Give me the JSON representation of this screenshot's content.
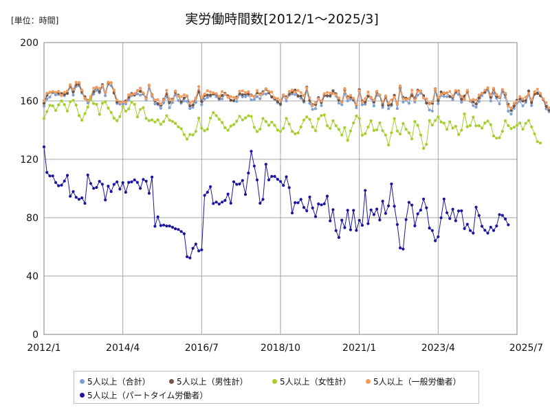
{
  "chart_data": {
    "type": "line",
    "title": "実労働時間数[2012/1～2025/3]",
    "unit_label": "[単位：時間]",
    "x_start": "2012/1",
    "x_end": "2025/7",
    "x_ticks": [
      "2012/1",
      "2014/4",
      "2016/7",
      "2018/10",
      "2021/1",
      "2023/4",
      "2025/7"
    ],
    "y_ticks": [
      0,
      40,
      80,
      120,
      160,
      200
    ],
    "ylim": [
      0,
      200
    ],
    "grid": true,
    "legend_position": "bottom",
    "series": [
      {
        "name": "5人以上（合計）",
        "color": "#7f9fd4",
        "values": [
          156.4,
          161.4,
          162.7,
          165.8,
          164.2,
          164.5,
          163.6,
          163.6,
          165.4,
          169.7,
          164.0,
          170.0,
          170.4,
          165.3,
          161.5,
          158.7,
          161.2,
          164.7,
          167.2,
          165.6,
          169.8,
          163.6,
          171.3,
          170.5,
          166.2,
          158.2,
          157.8,
          158.0,
          158.0,
          160.6,
          163.6,
          163.8,
          164.8,
          164.0,
          164.7,
          160.6,
          168.5,
          163.2,
          158.0,
          157.6,
          155.0,
          158.8,
          162.9,
          155.4,
          158.9,
          164.1,
          160.3,
          158.4,
          160.0,
          159.7,
          154.8,
          155.6,
          159.0,
          167.3,
          157.4,
          161.3,
          162.4,
          163.2,
          165.0,
          163.0,
          160.8,
          161.4,
          164.4,
          162.6,
          160.5,
          160.1,
          159.7,
          164.4,
          162.8,
          162.9,
          163.9,
          160.7,
          161.1,
          163.0,
          161.6,
          164.8,
          164.7,
          165.7,
          162.6,
          161.1,
          158.7,
          157.3,
          163.5,
          160.0,
          163.9,
          164.7,
          164.4,
          163.6,
          161.9,
          159.1,
          167.1,
          158.4,
          154.2,
          154.7,
          162.4,
          156.8,
          163.5,
          163.3,
          163.2,
          165.8,
          163.4,
          158.5,
          157.4,
          164.8,
          160.0,
          161.3,
          160.4,
          155.4,
          166.4,
          157.4,
          157.7,
          163.4,
          161.8,
          156.6,
          163.8,
          163.6,
          155.6,
          163.1,
          154.7,
          156.9,
          163.8,
          154.8,
          168.0,
          159.2,
          160.4,
          158.4,
          164.6,
          159.2,
          164.0,
          165.3,
          162.7,
          158.5,
          153.8,
          153.1,
          167.1,
          158.1,
          163.7,
          163.1,
          162.9,
          163.1,
          160.9,
          165.5,
          164.5,
          159.1,
          161.4,
          166.1,
          159.9,
          156.8,
          155.8,
          159.7,
          163.7,
          165.8,
          167.4,
          160.0,
          165.2,
          161.9,
          158.0,
          166.2,
          162.5,
          153.0,
          151.0,
          154.9,
          158.5,
          159.7,
          156.6,
          159.0,
          164.1,
          156.8,
          164.6,
          165.7,
          164.4,
          160.9,
          154.6,
          152.6
        ]
      },
      {
        "name": "5人以上（男性計）",
        "color": "#6e5544",
        "values": [
          158.3,
          163.8,
          165.9,
          166.1,
          165.9,
          165.4,
          165.1,
          164.5,
          165.2,
          170.7,
          166.2,
          171.2,
          171.5,
          166.3,
          162.9,
          160.4,
          162.4,
          166.4,
          169.3,
          166.4,
          171.2,
          165.9,
          172.1,
          172.5,
          165.4,
          159.2,
          159.2,
          159.4,
          160.0,
          162.5,
          165.1,
          164.2,
          167.0,
          166.6,
          165.1,
          162.2,
          170.7,
          164.4,
          160.0,
          158.2,
          157.1,
          161.2,
          164.9,
          158.8,
          161.2,
          165.8,
          164.0,
          159.4,
          162.0,
          163.4,
          156.6,
          157.2,
          162.0,
          166.1,
          159.6,
          163.7,
          164.0,
          164.0,
          164.7,
          164.6,
          161.8,
          163.7,
          165.2,
          163.5,
          160.4,
          160.2,
          162.7,
          165.1,
          164.3,
          164.6,
          164.9,
          164.1,
          163.0,
          165.5,
          164.7,
          166.3,
          168.0,
          165.6,
          162.8,
          161.6,
          159.6,
          157.9,
          164.0,
          162.8,
          164.8,
          166.0,
          167.4,
          163.3,
          163.4,
          160.0,
          169.5,
          160.3,
          157.5,
          157.5,
          162.1,
          158.9,
          163.9,
          163.6,
          163.5,
          167.0,
          164.9,
          160.5,
          159.4,
          167.4,
          162.9,
          162.8,
          160.9,
          157.2,
          167.7,
          160.1,
          159.1,
          163.2,
          162.4,
          159.3,
          165.9,
          164.0,
          157.1,
          162.6,
          157.1,
          157.6,
          163.8,
          157.8,
          169.0,
          162.5,
          161.9,
          161.5,
          163.7,
          162.1,
          167.4,
          166.8,
          163.6,
          158.6,
          158.3,
          158.4,
          168.4,
          160.1,
          166.1,
          165.0,
          165.4,
          163.0,
          162.6,
          166.2,
          166.8,
          161.1,
          163.3,
          166.1,
          160.2,
          159.3,
          158.0,
          162.1,
          165.2,
          166.0,
          169.0,
          162.5,
          167.9,
          163.0,
          162.4,
          167.4,
          164.3,
          157.7,
          153.5,
          156.5,
          160.5,
          161.5,
          159.9,
          160.2,
          166.8,
          158.8,
          164.7,
          165.2,
          163.6,
          161.0,
          156.3,
          153.7
        ]
      },
      {
        "name": "5人以上（女性計）",
        "color": "#a4cf2c",
        "values": [
          148.0,
          152.7,
          157.0,
          156.7,
          153.5,
          157.3,
          160.0,
          157.5,
          153.1,
          159.5,
          160.4,
          157.2,
          150.0,
          146.8,
          151.3,
          155.8,
          161.3,
          158.2,
          157.7,
          150.8,
          158.4,
          159.5,
          155.1,
          152.1,
          148.2,
          146.4,
          149.3,
          156.2,
          153.0,
          154.6,
          159.3,
          157.7,
          149.1,
          154.2,
          155.4,
          148.0,
          146.5,
          147.0,
          145.6,
          147.0,
          144.0,
          145.9,
          149.9,
          146.8,
          146.0,
          144.6,
          142.2,
          141.0,
          136.9,
          133.8,
          137.0,
          136.7,
          139.1,
          148.2,
          141.3,
          139.6,
          140.6,
          148.2,
          152.0,
          149.9,
          147.5,
          145.2,
          141.7,
          139.9,
          142.8,
          143.8,
          146.1,
          149.5,
          147.0,
          148.4,
          149.8,
          149.4,
          142.0,
          139.0,
          140.7,
          148.0,
          145.9,
          143.3,
          145.5,
          143.3,
          140.0,
          139.1,
          141.2,
          148.0,
          144.2,
          139.1,
          137.5,
          138.1,
          142.2,
          146.9,
          149.1,
          147.4,
          142.2,
          139.6,
          147.7,
          150.0,
          150.4,
          143.0,
          141.2,
          146.4,
          143.0,
          140.5,
          136.6,
          141.8,
          133.0,
          139.4,
          144.9,
          149.7,
          147.9,
          136.5,
          137.6,
          142.1,
          146.4,
          139.8,
          140.2,
          145.0,
          139.6,
          136.6,
          129.8,
          138.2,
          147.9,
          139.4,
          137.3,
          144.5,
          140.6,
          138.1,
          134.0,
          145.9,
          143.3,
          136.7,
          127.5,
          130.3,
          146.6,
          143.4,
          146.6,
          149.1,
          145.6,
          144.8,
          140.5,
          145.7,
          141.4,
          142.7,
          137.0,
          140.0,
          151.1,
          142.3,
          143.1,
          148.9,
          143.0,
          143.0,
          141.4,
          144.9,
          146.2,
          143.7,
          136.0,
          134.5,
          134.8,
          139.2,
          146.4,
          143.1,
          141.1,
          142.0,
          143.3,
          144.9,
          140.6,
          144.6,
          146.6,
          142.2,
          137.5,
          132.1,
          131.2
        ]
      },
      {
        "name": "5人以上（一般労働者）",
        "color": "#f19c5e",
        "values": [
          160.2,
          165.3,
          166.0,
          166.5,
          165.9,
          166.6,
          163.7,
          166.0,
          166.9,
          171.1,
          168.1,
          172.8,
          172.7,
          167.5,
          161.7,
          160.3,
          163.0,
          168.8,
          169.4,
          168.6,
          170.5,
          166.0,
          172.9,
          172.5,
          167.5,
          160.7,
          158.9,
          159.4,
          159.2,
          164.2,
          164.4,
          165.0,
          166.8,
          168.7,
          165.5,
          161.5,
          170.9,
          164.2,
          160.7,
          160.9,
          158.0,
          160.6,
          167.3,
          161.5,
          160.5,
          166.9,
          163.2,
          162.9,
          164.2,
          163.6,
          158.7,
          159.6,
          162.1,
          169.9,
          162.6,
          164.7,
          167.0,
          166.2,
          165.6,
          165.0,
          163.1,
          166.4,
          164.6,
          162.6,
          163.0,
          162.4,
          161.9,
          166.7,
          166.9,
          165.7,
          166.4,
          163.6,
          162.8,
          167.2,
          164.2,
          165.5,
          168.4,
          166.7,
          166.1,
          162.2,
          161.7,
          160.5,
          164.2,
          162.0,
          166.5,
          167.5,
          166.1,
          167.2,
          165.8,
          163.6,
          169.0,
          162.1,
          156.8,
          158.8,
          161.4,
          160.0,
          165.0,
          165.8,
          165.4,
          165.0,
          164.2,
          162.1,
          159.0,
          168.5,
          161.9,
          163.8,
          161.8,
          157.5,
          167.0,
          159.2,
          161.6,
          166.1,
          162.3,
          160.6,
          166.7,
          164.1,
          159.4,
          163.5,
          158.5,
          160.7,
          162.6,
          157.9,
          170.3,
          161.5,
          161.1,
          161.5,
          167.4,
          160.7,
          166.6,
          166.8,
          162.0,
          161.4,
          157.9,
          159.5,
          168.3,
          162.5,
          164.4,
          165.6,
          165.1,
          166.5,
          163.2,
          167.2,
          166.5,
          163.2,
          160.8,
          167.3,
          160.3,
          161.0,
          160.6,
          164.1,
          165.0,
          167.4,
          169.1,
          164.1,
          168.7,
          164.4,
          162.7,
          167.8,
          165.3,
          156.4,
          155.1,
          158.4,
          159.6,
          163.0,
          161.5,
          162.6,
          165.0,
          161.1,
          166.3,
          168.1,
          165.2,
          161.4,
          158.9,
          155.2
        ]
      },
      {
        "name": "5人以上（パートタイム労働者）",
        "color": "#1a14a0",
        "values": [
          128.5,
          111.0,
          108.6,
          108.6,
          104.1,
          101.9,
          102.3,
          105.1,
          109.0,
          94.7,
          97.9,
          94.0,
          92.6,
          93.6,
          89.8,
          109.2,
          103.4,
          100.1,
          100.7,
          104.9,
          102.9,
          92.2,
          101.6,
          97.9,
          102.8,
          104.5,
          99.6,
          104.0,
          97.4,
          104.2,
          104.5,
          105.9,
          104.2,
          100.1,
          106.2,
          105.0,
          96.7,
          107.8,
          74.1,
          80.5,
          74.6,
          74.9,
          74.3,
          74.3,
          73.4,
          72.4,
          71.9,
          70.5,
          69.0,
          53.2,
          52.4,
          59.0,
          61.9,
          57.2,
          58.0,
          95.3,
          97.4,
          101.2,
          89.7,
          90.7,
          89.3,
          90.7,
          91.8,
          96.2,
          89.9,
          104.6,
          102.8,
          103.1,
          105.5,
          95.9,
          110.6,
          125.5,
          115.4,
          105.9,
          89.9,
          92.5,
          116.6,
          105.9,
          108.3,
          108.3,
          106.3,
          104.8,
          102.1,
          108.0,
          100.6,
          83.2,
          90.3,
          90.2,
          92.5,
          87.0,
          84.7,
          94.1,
          86.7,
          80.7,
          89.4,
          88.8,
          89.5,
          94.8,
          77.8,
          85.5,
          71.1,
          66.4,
          78.3,
          73.2,
          85.1,
          71.7,
          85.0,
          71.3,
          78.2,
          74.8,
          98.7,
          75.9,
          85.3,
          82.1,
          85.9,
          78.4,
          91.3,
          82.9,
          88.1,
          103.1,
          87.8,
          75.3,
          59.3,
          58.5,
          78.7,
          90.5,
          88.6,
          74.4,
          82.6,
          85.2,
          92.8,
          86.8,
          72.9,
          71.2,
          64.2,
          66.9,
          79.9,
          92.8,
          83.4,
          79.4,
          85.8,
          77.9,
          84.6,
          84.7,
          72.5,
          75.5,
          71.2,
          69.4,
          87.2,
          81.5,
          74.1,
          71.4,
          69.4,
          73.5,
          71.2,
          74.3,
          82.1,
          81.6,
          79.1,
          75.1
        ]
      }
    ]
  }
}
